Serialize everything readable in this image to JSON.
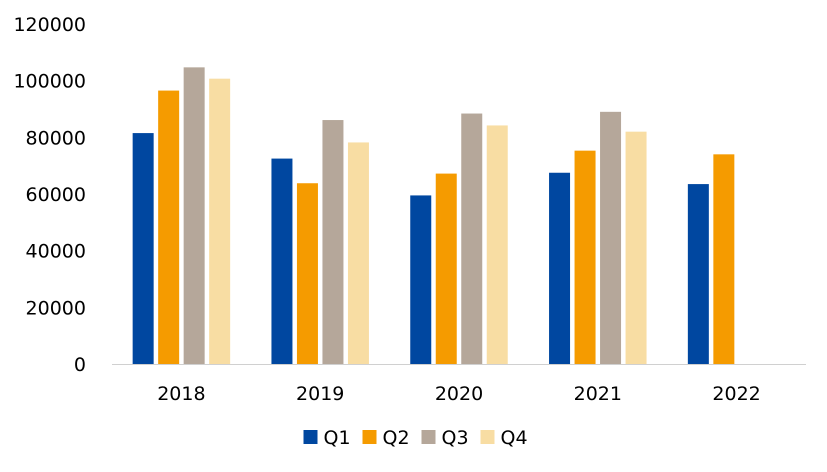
{
  "chart_data": {
    "type": "bar",
    "title": "",
    "xlabel": "",
    "ylabel": "",
    "categories": [
      "2018",
      "2019",
      "2020",
      "2021",
      "2022"
    ],
    "series": [
      {
        "name": "Q1",
        "color": "#0047A0",
        "values": [
          81500,
          72500,
          59500,
          67500,
          63500
        ]
      },
      {
        "name": "Q2",
        "color": "#F59B00",
        "values": [
          96500,
          63800,
          67200,
          75300,
          74000
        ]
      },
      {
        "name": "Q3",
        "color": "#B5A79A",
        "values": [
          104700,
          86100,
          88400,
          89000,
          null
        ]
      },
      {
        "name": "Q4",
        "color": "#F8DDA3",
        "values": [
          100700,
          78200,
          84200,
          82000,
          null
        ]
      }
    ],
    "ylim": [
      0,
      120000
    ],
    "yticks": [
      0,
      20000,
      40000,
      60000,
      80000,
      100000,
      120000
    ],
    "grid": false,
    "legend_position": "bottom"
  }
}
